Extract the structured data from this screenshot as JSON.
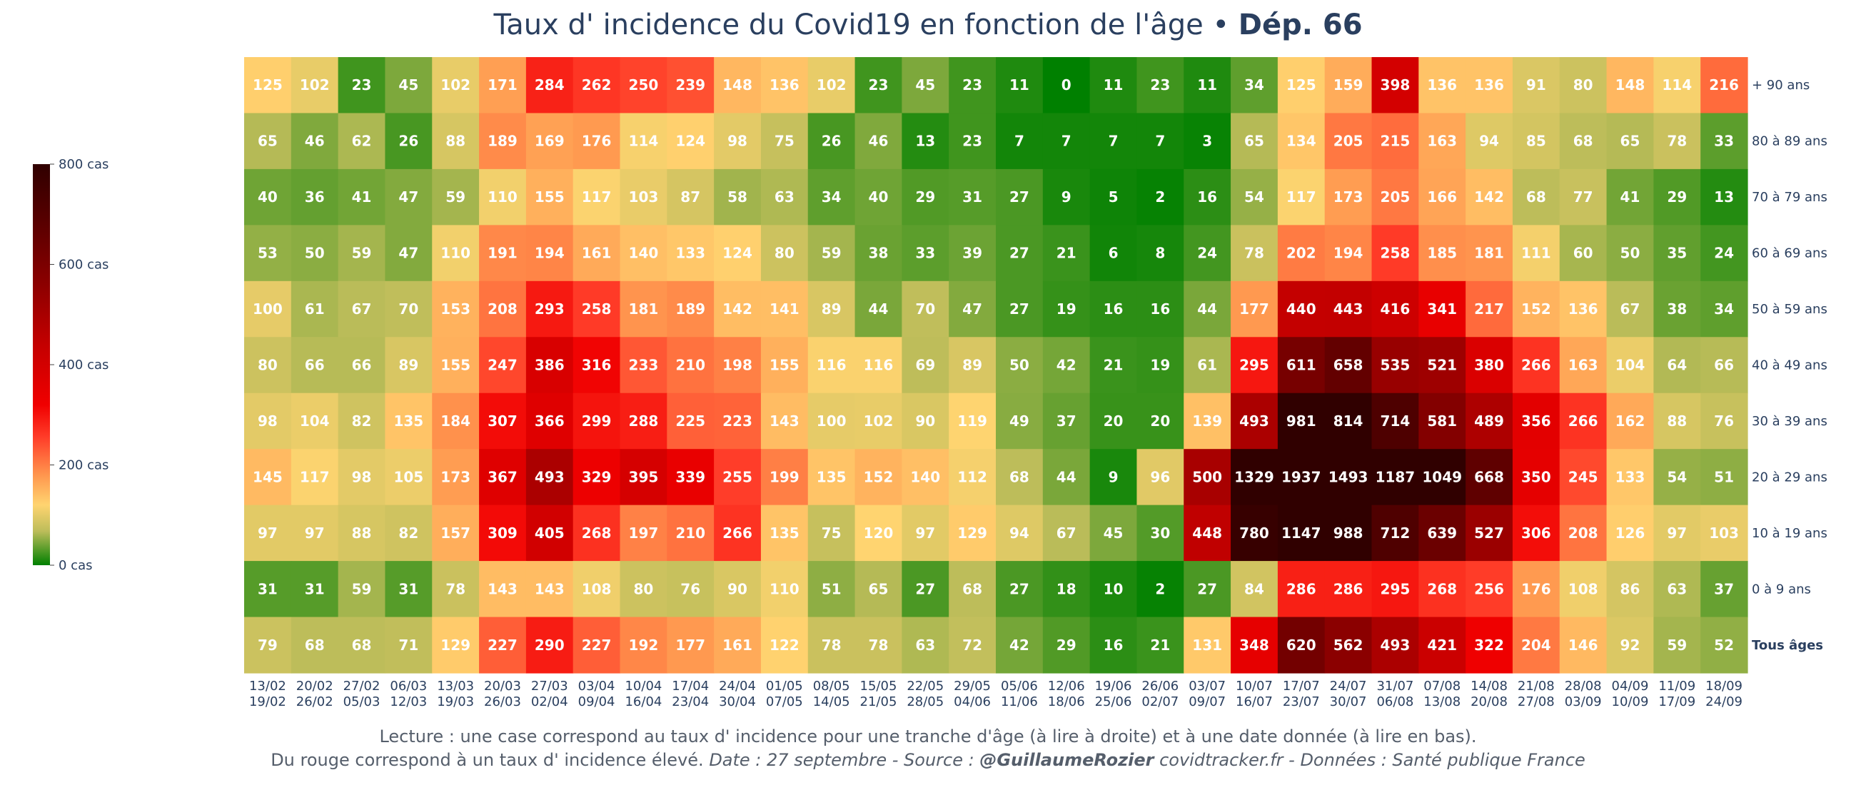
{
  "chart_data": {
    "type": "heatmap",
    "title": "Taux d' incidence du Covid19 en fonction de l'âge",
    "title_separator": " • ",
    "title_bold": "Dép. 66",
    "x": [
      "13/02\n19/02",
      "20/02\n26/02",
      "27/02\n05/03",
      "06/03\n12/03",
      "13/03\n19/03",
      "20/03\n26/03",
      "27/03\n02/04",
      "03/04\n09/04",
      "10/04\n16/04",
      "17/04\n23/04",
      "24/04\n30/04",
      "01/05\n07/05",
      "08/05\n14/05",
      "15/05\n21/05",
      "22/05\n28/05",
      "29/05\n04/06",
      "05/06\n11/06",
      "12/06\n18/06",
      "19/06\n25/06",
      "26/06\n02/07",
      "03/07\n09/07",
      "10/07\n16/07",
      "17/07\n23/07",
      "24/07\n30/07",
      "31/07\n06/08",
      "07/08\n13/08",
      "14/08\n20/08",
      "21/08\n27/08",
      "28/08\n03/09",
      "04/09\n10/09",
      "11/09\n17/09",
      "18/09\n24/09"
    ],
    "y": [
      "+ 90 ans",
      "80 à 89 ans",
      "70 à 79 ans",
      "60 à 69 ans",
      "50 à 59 ans",
      "40 à 49 ans",
      "30 à 39 ans",
      "20 à 29 ans",
      "10 à 19 ans",
      "0 à 9 ans",
      "Tous âges"
    ],
    "y_bold": [
      "Tous âges"
    ],
    "z": [
      [
        125,
        102,
        23,
        45,
        102,
        171,
        284,
        262,
        250,
        239,
        148,
        136,
        102,
        23,
        45,
        23,
        11,
        0,
        11,
        23,
        11,
        34,
        125,
        159,
        398,
        136,
        136,
        91,
        80,
        148,
        114,
        216
      ],
      [
        65,
        46,
        62,
        26,
        88,
        189,
        169,
        176,
        114,
        124,
        98,
        75,
        26,
        46,
        13,
        23,
        7,
        7,
        7,
        7,
        3,
        65,
        134,
        205,
        215,
        163,
        94,
        85,
        68,
        65,
        78,
        33
      ],
      [
        40,
        36,
        41,
        47,
        59,
        110,
        155,
        117,
        103,
        87,
        58,
        63,
        34,
        40,
        29,
        31,
        27,
        9,
        5,
        2,
        16,
        54,
        117,
        173,
        205,
        166,
        142,
        68,
        77,
        41,
        29,
        13
      ],
      [
        53,
        50,
        59,
        47,
        110,
        191,
        194,
        161,
        140,
        133,
        124,
        80,
        59,
        38,
        33,
        39,
        27,
        21,
        6,
        8,
        24,
        78,
        202,
        194,
        258,
        185,
        181,
        111,
        60,
        50,
        35,
        24
      ],
      [
        100,
        61,
        67,
        70,
        153,
        208,
        293,
        258,
        181,
        189,
        142,
        141,
        89,
        44,
        70,
        47,
        27,
        19,
        16,
        16,
        44,
        177,
        440,
        443,
        416,
        341,
        217,
        152,
        136,
        67,
        38,
        34
      ],
      [
        80,
        66,
        66,
        89,
        155,
        247,
        386,
        316,
        233,
        210,
        198,
        155,
        116,
        116,
        69,
        89,
        50,
        42,
        21,
        19,
        61,
        295,
        611,
        658,
        535,
        521,
        380,
        266,
        163,
        104,
        64,
        66
      ],
      [
        98,
        104,
        82,
        135,
        184,
        307,
        366,
        299,
        288,
        225,
        223,
        143,
        100,
        102,
        90,
        119,
        49,
        37,
        20,
        20,
        139,
        493,
        981,
        814,
        714,
        581,
        489,
        356,
        266,
        162,
        88,
        76
      ],
      [
        145,
        117,
        98,
        105,
        173,
        367,
        493,
        329,
        395,
        339,
        255,
        199,
        135,
        152,
        140,
        112,
        68,
        44,
        9,
        96,
        500,
        1329,
        1937,
        1493,
        1187,
        1049,
        668,
        350,
        245,
        133,
        54,
        51
      ],
      [
        97,
        97,
        88,
        82,
        157,
        309,
        405,
        268,
        197,
        210,
        266,
        135,
        75,
        120,
        97,
        129,
        94,
        67,
        45,
        30,
        448,
        780,
        1147,
        988,
        712,
        639,
        527,
        306,
        208,
        126,
        97,
        103
      ],
      [
        31,
        31,
        59,
        31,
        78,
        143,
        143,
        108,
        80,
        76,
        90,
        110,
        51,
        65,
        27,
        68,
        27,
        18,
        10,
        2,
        27,
        84,
        286,
        286,
        295,
        268,
        256,
        176,
        108,
        86,
        63,
        37
      ],
      [
        79,
        68,
        68,
        71,
        129,
        227,
        290,
        227,
        192,
        177,
        161,
        122,
        78,
        78,
        63,
        72,
        42,
        29,
        16,
        21,
        131,
        348,
        620,
        562,
        493,
        421,
        322,
        204,
        146,
        92,
        59,
        52
      ]
    ],
    "zmin": 0,
    "zmax": 800,
    "colorscale": [
      [
        0.0,
        "#008000"
      ],
      [
        0.085,
        "#bdbd5a"
      ],
      [
        0.15,
        "#ffd470"
      ],
      [
        0.22,
        "#ff9a50"
      ],
      [
        0.32,
        "#ff3c28"
      ],
      [
        0.4,
        "#f00000"
      ],
      [
        0.55,
        "#c40000"
      ],
      [
        0.7,
        "#8c0000"
      ],
      [
        0.85,
        "#5a0000"
      ],
      [
        1.0,
        "#300000"
      ]
    ],
    "colorbar_ticks": [
      "0 cas",
      "200 cas",
      "400 cas",
      "600 cas",
      "800 cas"
    ],
    "colorbar_tick_values": [
      0,
      200,
      400,
      600,
      800
    ]
  },
  "footer": {
    "line1": "Lecture : une case correspond au taux d' incidence pour une tranche d'âge (à lire à droite) et à une date donnée (à lire en bas).",
    "line2_start": "Du rouge correspond à un taux d' incidence élevé.",
    "line2_date": "Date : 27 septembre - Source : ",
    "line2_author": "@GuillaumeRozier",
    "line2_end": " covidtracker.fr - Données : Santé publique France"
  }
}
